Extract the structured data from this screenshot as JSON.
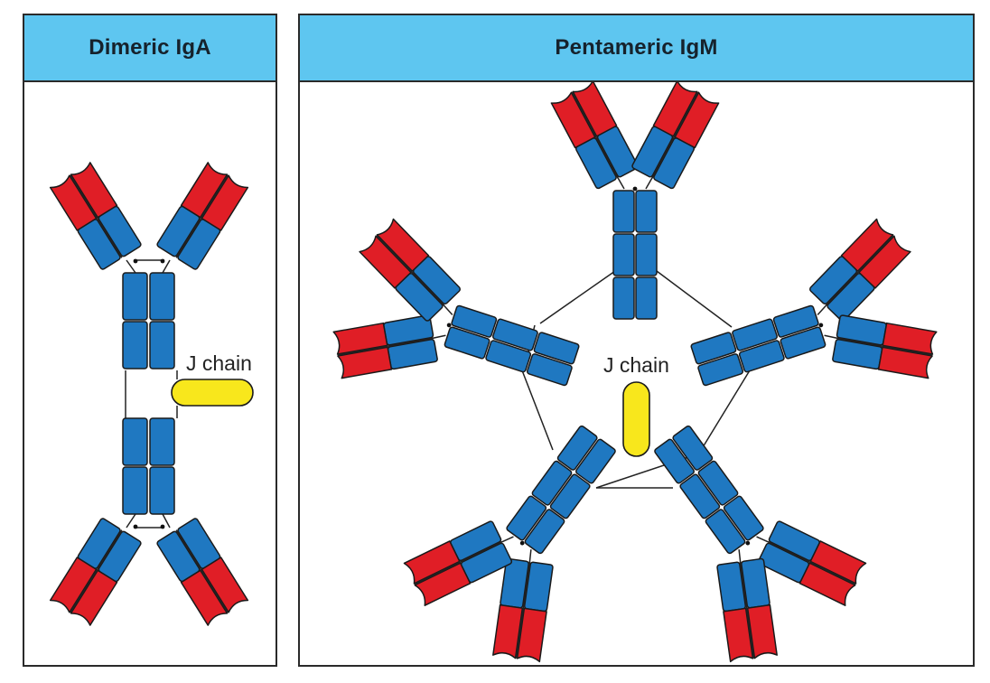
{
  "panels": {
    "iga": {
      "title": "Dimeric IgA",
      "j_chain_label": "J chain"
    },
    "igm": {
      "title": "Pentameric IgM",
      "j_chain_label": "J chain"
    }
  },
  "colors": {
    "header": "#5ec6f0",
    "constant_domain": "#1f78c1",
    "variable_domain": "#e01e26",
    "j_chain": "#f8e71c",
    "outline": "#1a1a1a"
  }
}
